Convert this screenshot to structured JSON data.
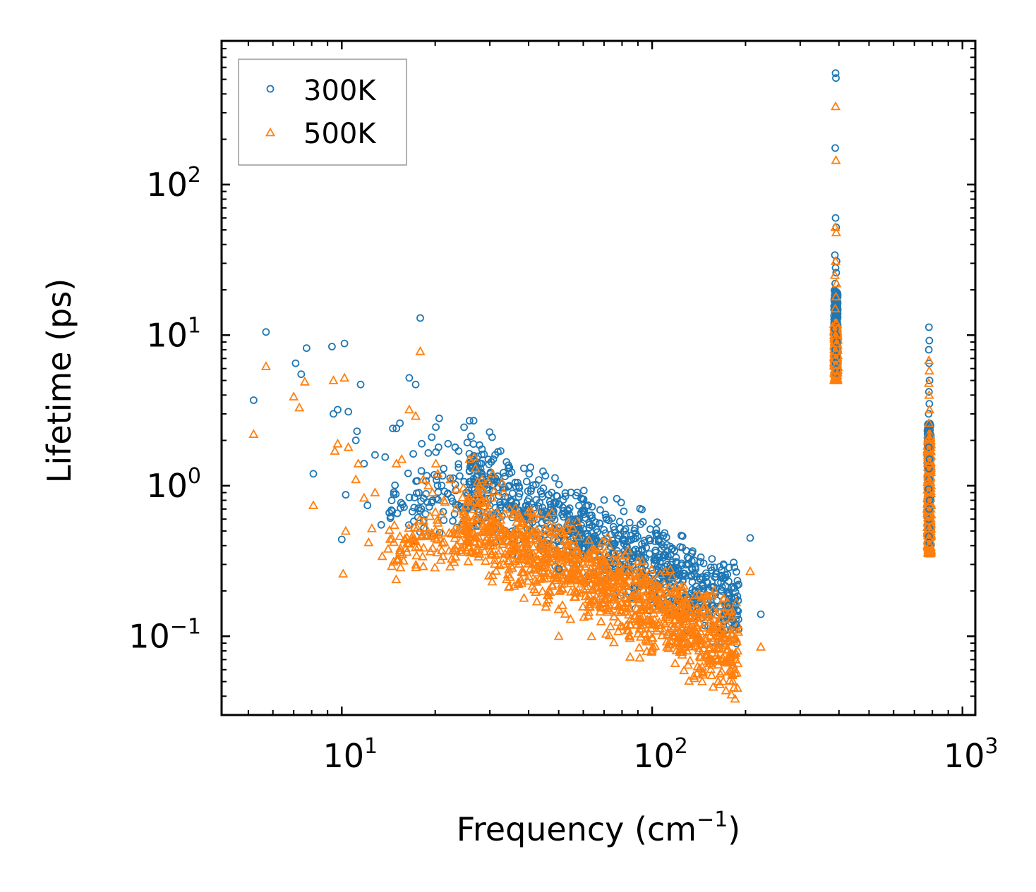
{
  "chart_data": {
    "type": "scatter",
    "title": "",
    "xlabel": "Frequency (cm",
    "xlabel_sup": "−1",
    "xlabel_tail": ")",
    "ylabel": "Lifetime (ps)",
    "xscale": "log",
    "yscale": "log",
    "xlim": [
      4.1,
      1100
    ],
    "ylim": [
      0.03,
      900
    ],
    "x_ticks": [
      {
        "value": 10,
        "base": "10",
        "exp": "1"
      },
      {
        "value": 100,
        "base": "10",
        "exp": "2"
      },
      {
        "value": 1000,
        "base": "10",
        "exp": "3"
      }
    ],
    "y_ticks": [
      {
        "value": 0.1,
        "base": "10",
        "exp": "−1"
      },
      {
        "value": 1,
        "base": "10",
        "exp": "0"
      },
      {
        "value": 10,
        "base": "10",
        "exp": "1"
      },
      {
        "value": 100,
        "base": "10",
        "exp": "2"
      }
    ],
    "legend_position": "top-left",
    "series": [
      {
        "name": "300K",
        "marker": "circle",
        "color": "#1f77b4",
        "points": [
          [
            5.2,
            3.7
          ],
          [
            5.7,
            10.5
          ],
          [
            7.1,
            6.5
          ],
          [
            7.4,
            5.5
          ],
          [
            7.7,
            8.2
          ],
          [
            8.1,
            1.2
          ],
          [
            9.3,
            8.4
          ],
          [
            9.4,
            3.0
          ],
          [
            9.7,
            3.2
          ],
          [
            10.0,
            0.44
          ],
          [
            10.2,
            8.8
          ],
          [
            10.3,
            0.87
          ],
          [
            10.5,
            3.1
          ],
          [
            11.5,
            4.7
          ],
          [
            11.1,
            2.0
          ],
          [
            11.2,
            2.3
          ],
          [
            11.8,
            1.4
          ],
          [
            12.1,
            0.74
          ],
          [
            12.8,
            1.6
          ],
          [
            13.4,
            0.55
          ],
          [
            13.8,
            1.55
          ],
          [
            14.6,
            2.4
          ],
          [
            15.0,
            2.4
          ],
          [
            15.4,
            2.6
          ],
          [
            16.5,
            5.2
          ],
          [
            17.3,
            4.7
          ],
          [
            17.9,
            13.0
          ],
          [
            18.1,
            1.9
          ],
          [
            19.0,
            1.65
          ],
          [
            19.5,
            2.1
          ],
          [
            20.1,
            2.45
          ],
          [
            20.5,
            1.8
          ],
          [
            20.6,
            2.8
          ],
          [
            21.3,
            1.3
          ],
          [
            22.0,
            1.9
          ],
          [
            23.2,
            1.8
          ],
          [
            23.8,
            1.7
          ],
          [
            25.8,
            2.7
          ],
          [
            26.6,
            2.7
          ],
          [
            28.3,
            1.75
          ],
          [
            30.5,
            2.1
          ],
          [
            31.2,
            1.6
          ],
          [
            32.5,
            1.7
          ],
          [
            34.6,
            1.0
          ],
          [
            44.0,
            0.67
          ],
          [
            50.1,
            0.28
          ],
          [
            53.6,
            0.68
          ],
          [
            56.0,
            0.58
          ],
          [
            61.0,
            0.61
          ],
          [
            68.0,
            0.69
          ],
          [
            79.0,
            0.52
          ],
          [
            88.0,
            0.52
          ],
          [
            118.0,
            0.37
          ],
          [
            138.0,
            0.28
          ],
          [
            176.0,
            0.16
          ],
          [
            207.0,
            0.45
          ],
          [
            224.0,
            0.14
          ],
          [
            186.0,
            0.12
          ],
          [
            390,
            550
          ],
          [
            391,
            510
          ],
          [
            389,
            175
          ],
          [
            390,
            60
          ],
          [
            392,
            52
          ],
          [
            388,
            34
          ],
          [
            393,
            31
          ],
          [
            390,
            28
          ],
          [
            392,
            26
          ],
          [
            389,
            22
          ],
          [
            391,
            18
          ],
          [
            393,
            16
          ],
          [
            390,
            14
          ],
          [
            392,
            12.5
          ],
          [
            388,
            11
          ],
          [
            391,
            10
          ],
          [
            394,
            9
          ],
          [
            389,
            8
          ],
          [
            392,
            7.2
          ],
          [
            390,
            6.5
          ],
          [
            393,
            6
          ],
          [
            391,
            5.6
          ],
          [
            780,
            11.3
          ],
          [
            782,
            9.2
          ],
          [
            779,
            8.0
          ],
          [
            781,
            6.5
          ],
          [
            783,
            5.0
          ],
          [
            780,
            4.2
          ],
          [
            782,
            3.5
          ],
          [
            778,
            3.0
          ],
          [
            784,
            2.5
          ],
          [
            781,
            2.1
          ],
          [
            779,
            1.8
          ],
          [
            783,
            1.5
          ],
          [
            780,
            1.3
          ],
          [
            782,
            1.1
          ],
          [
            778,
            0.95
          ],
          [
            784,
            0.8
          ],
          [
            781,
            0.7
          ],
          [
            779,
            0.6
          ],
          [
            783,
            0.52
          ],
          [
            780,
            0.46
          ],
          [
            782,
            0.42
          ]
        ]
      },
      {
        "name": "500K",
        "marker": "triangle",
        "color": "#ff7f0e",
        "points": [
          [
            5.2,
            2.2
          ],
          [
            5.7,
            6.2
          ],
          [
            7.0,
            3.9
          ],
          [
            7.3,
            3.3
          ],
          [
            7.6,
            4.9
          ],
          [
            8.1,
            0.74
          ],
          [
            9.4,
            5.0
          ],
          [
            9.5,
            1.7
          ],
          [
            9.7,
            1.9
          ],
          [
            10.1,
            0.26
          ],
          [
            10.2,
            5.2
          ],
          [
            10.3,
            0.5
          ],
          [
            10.5,
            1.8
          ],
          [
            11.1,
            1.1
          ],
          [
            11.3,
            1.4
          ],
          [
            11.8,
            0.83
          ],
          [
            12.2,
            0.42
          ],
          [
            12.5,
            0.52
          ],
          [
            12.8,
            0.9
          ],
          [
            13.5,
            0.34
          ],
          [
            14.1,
            0.38
          ],
          [
            15.0,
            1.4
          ],
          [
            15.6,
            1.5
          ],
          [
            16.5,
            3.2
          ],
          [
            17.3,
            2.9
          ],
          [
            17.9,
            7.8
          ],
          [
            18.3,
            1.1
          ],
          [
            19.0,
            1.0
          ],
          [
            19.6,
            0.9
          ],
          [
            20.1,
            1.4
          ],
          [
            20.4,
            1.2
          ],
          [
            21.5,
            0.78
          ],
          [
            22.4,
            1.1
          ],
          [
            23.4,
            0.95
          ],
          [
            25.8,
            1.5
          ],
          [
            26.7,
            1.55
          ],
          [
            28.3,
            1.1
          ],
          [
            30.6,
            1.2
          ],
          [
            32.8,
            1.05
          ],
          [
            34.7,
            0.7
          ],
          [
            44.0,
            0.38
          ],
          [
            50.0,
            0.1
          ],
          [
            53.5,
            0.38
          ],
          [
            56.0,
            0.32
          ],
          [
            61.0,
            0.33
          ],
          [
            68.0,
            0.38
          ],
          [
            79.0,
            0.29
          ],
          [
            88.0,
            0.29
          ],
          [
            118.0,
            0.2
          ],
          [
            138.0,
            0.15
          ],
          [
            145.0,
            0.05
          ],
          [
            176.0,
            0.082
          ],
          [
            186.0,
            0.07
          ],
          [
            207.0,
            0.27
          ],
          [
            224.0,
            0.085
          ],
          [
            390,
            330
          ],
          [
            391,
            145
          ],
          [
            389,
            52
          ],
          [
            392,
            48
          ],
          [
            390,
            31
          ],
          [
            388,
            25
          ],
          [
            393,
            22
          ],
          [
            391,
            18
          ],
          [
            389,
            15
          ],
          [
            392,
            12
          ],
          [
            390,
            10
          ],
          [
            393,
            8.8
          ],
          [
            391,
            7.8
          ],
          [
            389,
            7.0
          ],
          [
            392,
            6.3
          ],
          [
            390,
            5.8
          ],
          [
            393,
            5.4
          ],
          [
            391,
            5.0
          ],
          [
            780,
            6.8
          ],
          [
            782,
            5.8
          ],
          [
            779,
            4.8
          ],
          [
            781,
            4.0
          ],
          [
            783,
            3.2
          ],
          [
            780,
            2.6
          ],
          [
            782,
            2.1
          ],
          [
            778,
            1.7
          ],
          [
            784,
            1.4
          ],
          [
            781,
            1.1
          ],
          [
            779,
            0.9
          ],
          [
            783,
            0.75
          ],
          [
            780,
            0.62
          ],
          [
            782,
            0.52
          ],
          [
            778,
            0.45
          ],
          [
            784,
            0.4
          ],
          [
            781,
            0.36
          ]
        ]
      }
    ],
    "dense_bands": [
      {
        "series": 0,
        "xmin": 24,
        "xmax": 190,
        "y_at_xmin": 1.15,
        "y_at_xmax": 0.155,
        "spread": 0.32,
        "count": 900,
        "seed": 11
      },
      {
        "series": 1,
        "xmin": 24,
        "xmax": 190,
        "y_at_xmin": 0.62,
        "y_at_xmax": 0.08,
        "spread": 0.34,
        "count": 1100,
        "seed": 23
      },
      {
        "series": 1,
        "xmin": 14,
        "xmax": 28,
        "y_at_xmin": 0.36,
        "y_at_xmax": 0.5,
        "spread": 0.22,
        "count": 120,
        "seed": 37
      },
      {
        "series": 0,
        "xmin": 14,
        "xmax": 28,
        "y_at_xmin": 0.7,
        "y_at_xmax": 1.0,
        "spread": 0.28,
        "count": 100,
        "seed": 41
      }
    ],
    "dense_columns": [
      {
        "series": 0,
        "x": 391,
        "xspread": 0.006,
        "ymin": 6.0,
        "ymax": 20,
        "count": 220,
        "seed": 5
      },
      {
        "series": 1,
        "x": 391,
        "xspread": 0.006,
        "ymin": 5.0,
        "ymax": 12,
        "count": 220,
        "seed": 7
      },
      {
        "series": 0,
        "x": 781,
        "xspread": 0.006,
        "ymin": 0.4,
        "ymax": 2.6,
        "count": 260,
        "seed": 9
      },
      {
        "series": 1,
        "x": 781,
        "xspread": 0.006,
        "ymin": 0.35,
        "ymax": 2.2,
        "count": 260,
        "seed": 13
      }
    ]
  }
}
